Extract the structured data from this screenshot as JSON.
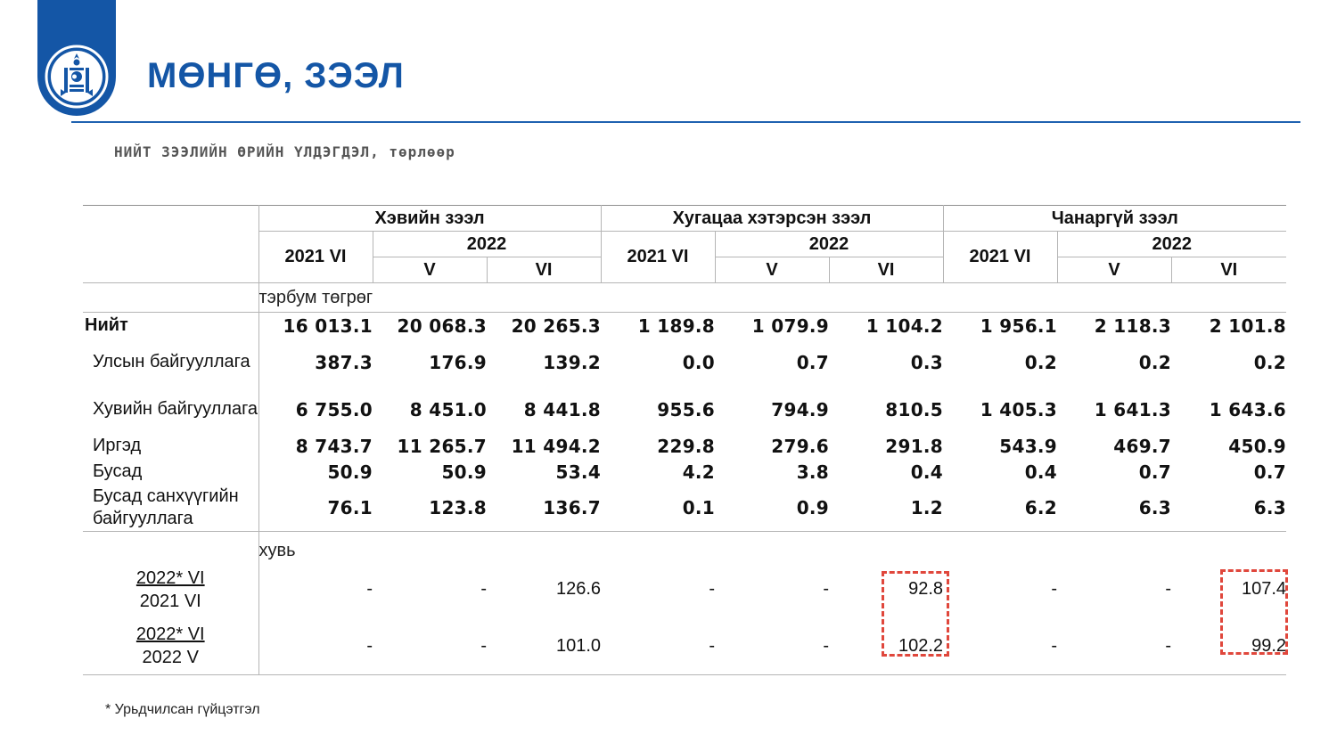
{
  "page": {
    "title": "МӨНГӨ, ЗЭЭЛ",
    "subtitle": "НИЙТ ЗЭЭЛИЙН ӨРИЙН ҮЛДЭГДЭЛ, төрлөөр",
    "footnote": "* Урьдчилсан гүйцэтгэл"
  },
  "colors": {
    "brand_blue": "#1456a6",
    "rule_blue": "#1f62b0",
    "highlight_red": "#e0473c"
  },
  "logo": {
    "icon": "mongolian-soyombo-emblem-icon"
  },
  "table": {
    "groups": [
      "Хэвийн зээл",
      "Хугацаа хэтэрсэн зээл",
      "Чанаргүй зээл"
    ],
    "col_base": "2021 VI",
    "col_year": "2022",
    "col_months": [
      "V",
      "VI"
    ],
    "unit_amount": "тэрбум төгрөг",
    "unit_percent": "хувь",
    "rows": [
      {
        "label": "Нийт",
        "values": [
          "16 013.1",
          "20 068.3",
          "20 265.3",
          "1 189.8",
          "1 079.9",
          "1 104.2",
          "1 956.1",
          "2 118.3",
          "2 101.8"
        ]
      },
      {
        "label": "Улсын байгууллага",
        "values": [
          "387.3",
          "176.9",
          "139.2",
          "0.0",
          "0.7",
          "0.3",
          "0.2",
          "0.2",
          "0.2"
        ]
      },
      {
        "label": "Хувийн байгууллага",
        "values": [
          "6 755.0",
          "8 451.0",
          "8 441.8",
          "955.6",
          "794.9",
          "810.5",
          "1 405.3",
          "1 641.3",
          "1 643.6"
        ]
      },
      {
        "label": "Иргэд",
        "values": [
          "8 743.7",
          "11 265.7",
          "11 494.2",
          "229.8",
          "279.6",
          "291.8",
          "543.9",
          "469.7",
          "450.9"
        ]
      },
      {
        "label": "Бусад",
        "values": [
          "50.9",
          "50.9",
          "53.4",
          "4.2",
          "3.8",
          "0.4",
          "0.4",
          "0.7",
          "0.7"
        ]
      },
      {
        "label": "Бусад санхүүгийн байгууллага",
        "values": [
          "76.1",
          "123.8",
          "136.7",
          "0.1",
          "0.9",
          "1.2",
          "6.2",
          "6.3",
          "6.3"
        ]
      }
    ],
    "ratio_rows": [
      {
        "numerator": "2022* VI",
        "denominator": "2021 VI",
        "values": [
          "-",
          "-",
          "126.6",
          "-",
          "-",
          "92.8",
          "-",
          "-",
          "107.4"
        ]
      },
      {
        "numerator": "2022* VI",
        "denominator": "2022 V",
        "values": [
          "-",
          "-",
          "101.0",
          "-",
          "-",
          "102.2",
          "-",
          "-",
          "99.2"
        ]
      }
    ]
  }
}
